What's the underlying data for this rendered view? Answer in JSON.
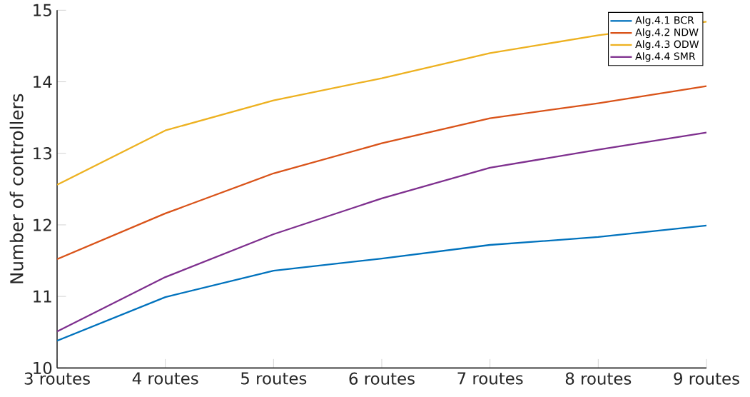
{
  "chart_data": {
    "type": "line",
    "ylabel": "Number of controllers",
    "categories": [
      "3 routes",
      "4 routes",
      "5 routes",
      "6 routes",
      "7 routes",
      "8 routes",
      "9 routes"
    ],
    "series": [
      {
        "name": "Alg.4.1 BCR",
        "color": "#0072bd",
        "values": [
          10.38,
          10.99,
          11.36,
          11.53,
          11.72,
          11.83,
          11.99
        ]
      },
      {
        "name": "Alg.4.2 NDW",
        "color": "#d95319",
        "values": [
          11.52,
          12.16,
          12.72,
          13.14,
          13.49,
          13.7,
          13.94
        ]
      },
      {
        "name": "Alg.4.3 ODW",
        "color": "#edb120",
        "values": [
          12.56,
          13.32,
          13.74,
          14.05,
          14.4,
          14.65,
          14.84
        ]
      },
      {
        "name": "Alg.4.4 SMR",
        "color": "#7e2f8e",
        "values": [
          10.51,
          11.27,
          11.87,
          12.37,
          12.8,
          13.05,
          13.29
        ]
      }
    ],
    "ylim": [
      10,
      15
    ],
    "yticks": [
      10,
      11,
      12,
      13,
      14,
      15
    ],
    "legend": "top right",
    "grid": false,
    "marker": "none",
    "line_style": "solid"
  }
}
